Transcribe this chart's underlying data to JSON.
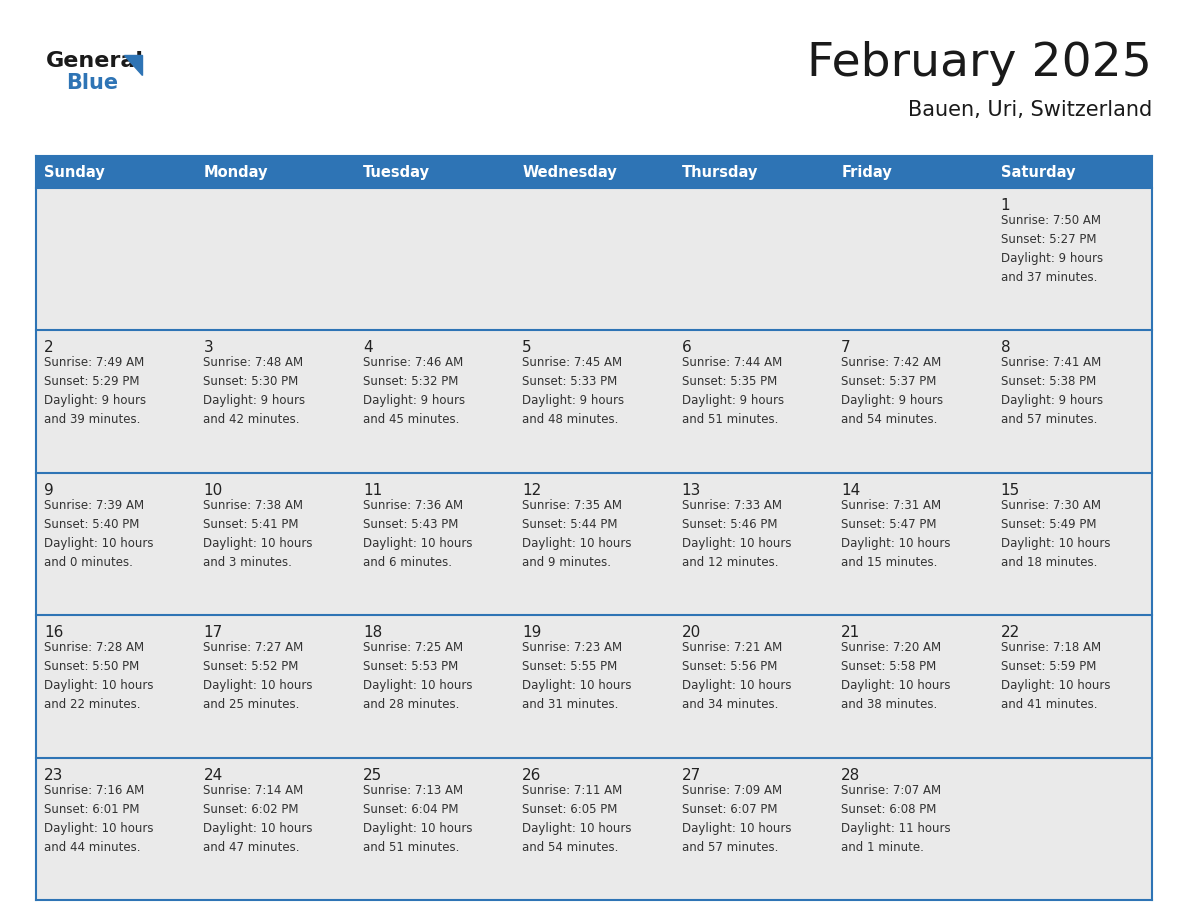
{
  "title": "February 2025",
  "subtitle": "Bauen, Uri, Switzerland",
  "header_bg_color": "#2E74B5",
  "header_text_color": "#FFFFFF",
  "cell_bg_color": "#EAEAEA",
  "row_line_color": "#2E74B5",
  "text_color": "#333333",
  "days_of_week": [
    "Sunday",
    "Monday",
    "Tuesday",
    "Wednesday",
    "Thursday",
    "Friday",
    "Saturday"
  ],
  "fig_width": 11.88,
  "fig_height": 9.18,
  "weeks": [
    [
      {
        "day": "",
        "info": ""
      },
      {
        "day": "",
        "info": ""
      },
      {
        "day": "",
        "info": ""
      },
      {
        "day": "",
        "info": ""
      },
      {
        "day": "",
        "info": ""
      },
      {
        "day": "",
        "info": ""
      },
      {
        "day": "1",
        "info": "Sunrise: 7:50 AM\nSunset: 5:27 PM\nDaylight: 9 hours\nand 37 minutes."
      }
    ],
    [
      {
        "day": "2",
        "info": "Sunrise: 7:49 AM\nSunset: 5:29 PM\nDaylight: 9 hours\nand 39 minutes."
      },
      {
        "day": "3",
        "info": "Sunrise: 7:48 AM\nSunset: 5:30 PM\nDaylight: 9 hours\nand 42 minutes."
      },
      {
        "day": "4",
        "info": "Sunrise: 7:46 AM\nSunset: 5:32 PM\nDaylight: 9 hours\nand 45 minutes."
      },
      {
        "day": "5",
        "info": "Sunrise: 7:45 AM\nSunset: 5:33 PM\nDaylight: 9 hours\nand 48 minutes."
      },
      {
        "day": "6",
        "info": "Sunrise: 7:44 AM\nSunset: 5:35 PM\nDaylight: 9 hours\nand 51 minutes."
      },
      {
        "day": "7",
        "info": "Sunrise: 7:42 AM\nSunset: 5:37 PM\nDaylight: 9 hours\nand 54 minutes."
      },
      {
        "day": "8",
        "info": "Sunrise: 7:41 AM\nSunset: 5:38 PM\nDaylight: 9 hours\nand 57 minutes."
      }
    ],
    [
      {
        "day": "9",
        "info": "Sunrise: 7:39 AM\nSunset: 5:40 PM\nDaylight: 10 hours\nand 0 minutes."
      },
      {
        "day": "10",
        "info": "Sunrise: 7:38 AM\nSunset: 5:41 PM\nDaylight: 10 hours\nand 3 minutes."
      },
      {
        "day": "11",
        "info": "Sunrise: 7:36 AM\nSunset: 5:43 PM\nDaylight: 10 hours\nand 6 minutes."
      },
      {
        "day": "12",
        "info": "Sunrise: 7:35 AM\nSunset: 5:44 PM\nDaylight: 10 hours\nand 9 minutes."
      },
      {
        "day": "13",
        "info": "Sunrise: 7:33 AM\nSunset: 5:46 PM\nDaylight: 10 hours\nand 12 minutes."
      },
      {
        "day": "14",
        "info": "Sunrise: 7:31 AM\nSunset: 5:47 PM\nDaylight: 10 hours\nand 15 minutes."
      },
      {
        "day": "15",
        "info": "Sunrise: 7:30 AM\nSunset: 5:49 PM\nDaylight: 10 hours\nand 18 minutes."
      }
    ],
    [
      {
        "day": "16",
        "info": "Sunrise: 7:28 AM\nSunset: 5:50 PM\nDaylight: 10 hours\nand 22 minutes."
      },
      {
        "day": "17",
        "info": "Sunrise: 7:27 AM\nSunset: 5:52 PM\nDaylight: 10 hours\nand 25 minutes."
      },
      {
        "day": "18",
        "info": "Sunrise: 7:25 AM\nSunset: 5:53 PM\nDaylight: 10 hours\nand 28 minutes."
      },
      {
        "day": "19",
        "info": "Sunrise: 7:23 AM\nSunset: 5:55 PM\nDaylight: 10 hours\nand 31 minutes."
      },
      {
        "day": "20",
        "info": "Sunrise: 7:21 AM\nSunset: 5:56 PM\nDaylight: 10 hours\nand 34 minutes."
      },
      {
        "day": "21",
        "info": "Sunrise: 7:20 AM\nSunset: 5:58 PM\nDaylight: 10 hours\nand 38 minutes."
      },
      {
        "day": "22",
        "info": "Sunrise: 7:18 AM\nSunset: 5:59 PM\nDaylight: 10 hours\nand 41 minutes."
      }
    ],
    [
      {
        "day": "23",
        "info": "Sunrise: 7:16 AM\nSunset: 6:01 PM\nDaylight: 10 hours\nand 44 minutes."
      },
      {
        "day": "24",
        "info": "Sunrise: 7:14 AM\nSunset: 6:02 PM\nDaylight: 10 hours\nand 47 minutes."
      },
      {
        "day": "25",
        "info": "Sunrise: 7:13 AM\nSunset: 6:04 PM\nDaylight: 10 hours\nand 51 minutes."
      },
      {
        "day": "26",
        "info": "Sunrise: 7:11 AM\nSunset: 6:05 PM\nDaylight: 10 hours\nand 54 minutes."
      },
      {
        "day": "27",
        "info": "Sunrise: 7:09 AM\nSunset: 6:07 PM\nDaylight: 10 hours\nand 57 minutes."
      },
      {
        "day": "28",
        "info": "Sunrise: 7:07 AM\nSunset: 6:08 PM\nDaylight: 11 hours\nand 1 minute."
      },
      {
        "day": "",
        "info": ""
      }
    ]
  ]
}
